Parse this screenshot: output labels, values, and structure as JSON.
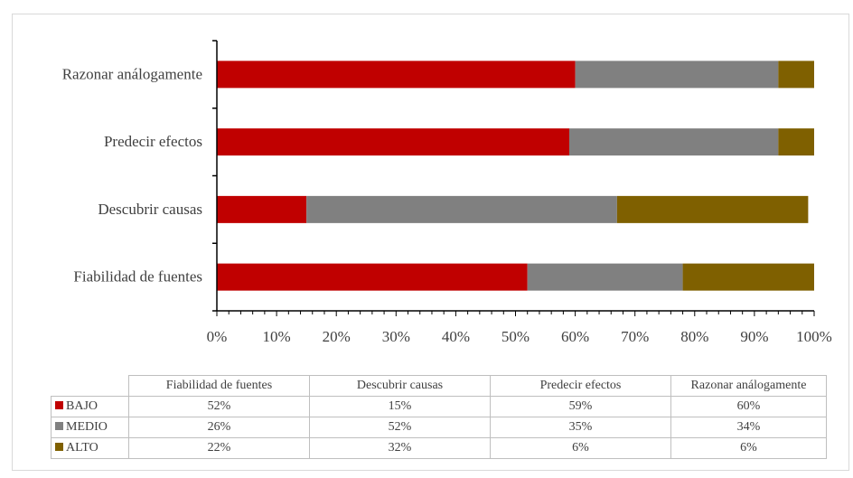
{
  "chart_data": {
    "type": "bar",
    "orientation": "horizontal",
    "stacked": "percent",
    "categories": [
      "Fiabilidad de fuentes",
      "Descubrir causas",
      "Predecir efectos",
      "Razonar análogamente"
    ],
    "series": [
      {
        "name": "BAJO",
        "color": "#c00000",
        "values": [
          52,
          15,
          59,
          60
        ],
        "labels": [
          "52%",
          "15%",
          "59%",
          "60%"
        ]
      },
      {
        "name": "MEDIO",
        "color": "#808080",
        "values": [
          26,
          52,
          35,
          34
        ],
        "labels": [
          "26%",
          "52%",
          "35%",
          "34%"
        ]
      },
      {
        "name": "ALTO",
        "color": "#7f6000",
        "values": [
          22,
          32,
          6,
          6
        ],
        "labels": [
          "22%",
          "32%",
          "6%",
          "6%"
        ]
      }
    ],
    "xlim": [
      0,
      100
    ],
    "x_ticks": [
      "0%",
      "10%",
      "20%",
      "30%",
      "40%",
      "50%",
      "60%",
      "70%",
      "80%",
      "90%",
      "100%"
    ],
    "grid": false,
    "legend": "data-table-below"
  }
}
